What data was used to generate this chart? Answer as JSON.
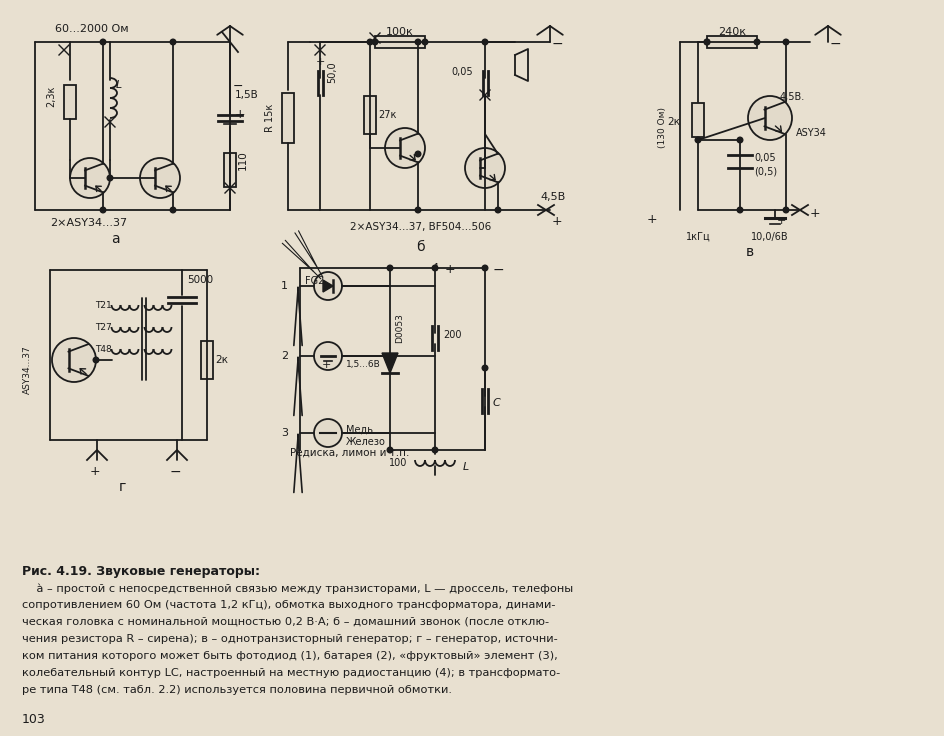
{
  "bg": "#e8e0d0",
  "paper": "#e2daca",
  "ink": "#1c1c1c",
  "fig_width": 9.44,
  "fig_height": 7.36,
  "dpi": 100,
  "title_caption": "Рис. 4.19. Звуковые генераторы:",
  "caption_lines": [
    "    à – простой с непосредственной связью между транзисторами, L — дроссель, телефоны",
    "сопротивлением 60 Ом (частота 1,2 кГц), обмотка выходного трансформатора, динами-",
    "ческая головка с номинальной мощностью 0,2 В·А; б – домашний звонок (после отклю-",
    "чения резистора R – сирена); в – однотранзисторный генератор; г – генератор, источни-",
    "ком питания которого может быть фотодиод (1), батарея (2), «фруктовый» элемент (3),",
    "колебательный контур LC, настроенный на местную радиостанцию (4); в трансформато-",
    "ре типа Т48 (см. табл. 2.2) используется половина первичной обмотки."
  ],
  "page_number": "103"
}
